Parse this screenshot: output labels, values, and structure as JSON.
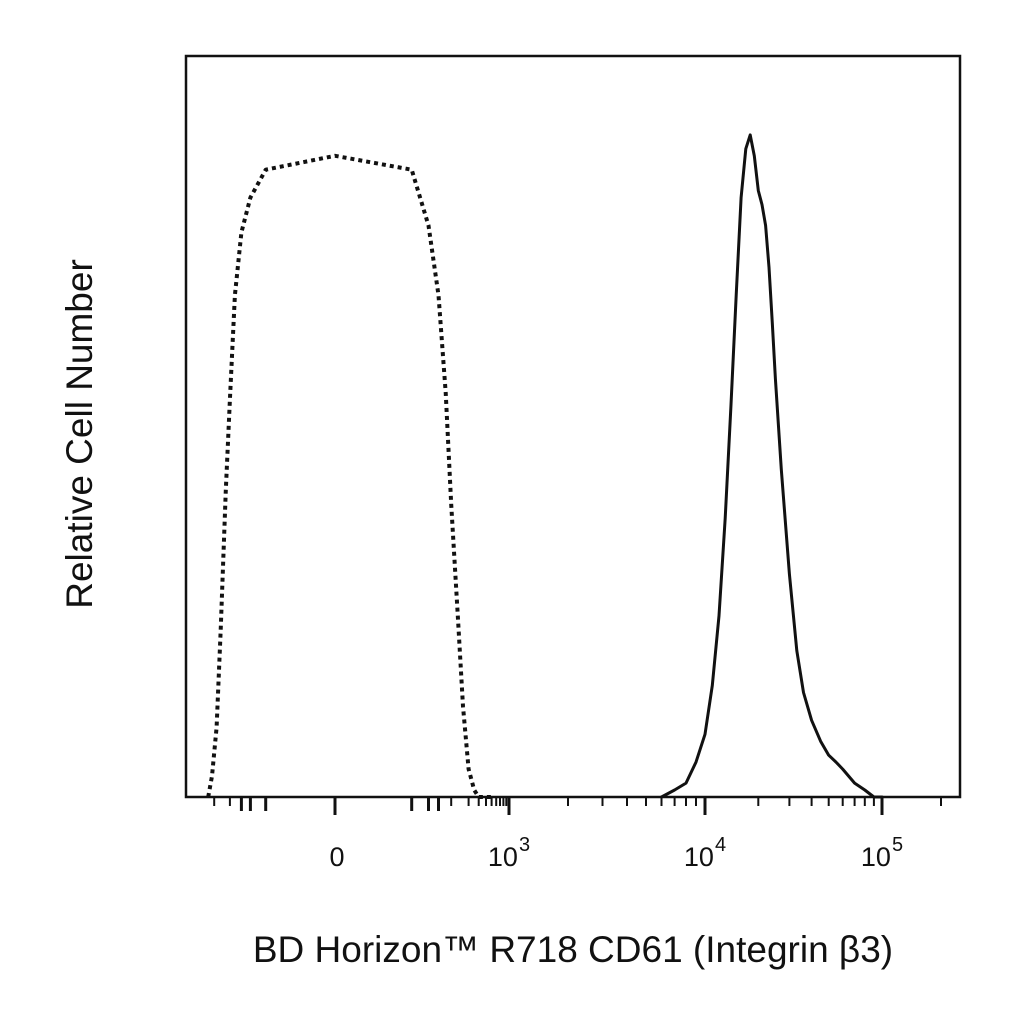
{
  "chart_data": {
    "type": "area",
    "title": "",
    "xlabel": "BD Horizon™ R718 CD61 (Integrin β3)",
    "ylabel": "Relative Cell Number",
    "x_scale": "biexponential",
    "xlim": [
      -300,
      250000
    ],
    "ylim": [
      0,
      100
    ],
    "grid": false,
    "legend": "none",
    "x_ticks": [
      {
        "value": 0,
        "base": "0",
        "exponent": ""
      },
      {
        "value": 1000,
        "base": "10",
        "exponent": "3"
      },
      {
        "value": 10000,
        "base": "10",
        "exponent": "4"
      },
      {
        "value": 100000,
        "base": "10",
        "exponent": "5"
      }
    ],
    "series": [
      {
        "line_style": "dotted",
        "color": "#111111",
        "x": [
          -260,
          -220,
          -180,
          -150,
          -120,
          -100,
          -80,
          -60,
          -40,
          -20,
          0,
          20,
          40,
          60,
          80,
          100,
          130,
          160,
          200,
          250,
          300,
          400,
          500
        ],
        "y": [
          0,
          3,
          10,
          24,
          44,
          57,
          72,
          81,
          86,
          90,
          92,
          90,
          82,
          72,
          58,
          42,
          26,
          13,
          4,
          1,
          0,
          0,
          0
        ]
      },
      {
        "line_style": "solid",
        "color": "#111111",
        "x": [
          6000,
          7000,
          8000,
          9000,
          10000,
          11000,
          12000,
          13000,
          14000,
          15000,
          16000,
          17000,
          18000,
          19000,
          20000,
          21000,
          22000,
          23000,
          24000,
          25000,
          27000,
          30000,
          33000,
          36000,
          40000,
          45000,
          50000,
          55000,
          60000,
          70000,
          80000,
          90000,
          100000
        ],
        "y": [
          0,
          1,
          2,
          5,
          9,
          16,
          26,
          40,
          56,
          72,
          86,
          93,
          95,
          92,
          87,
          85,
          82,
          76,
          68,
          60,
          47,
          32,
          21,
          15,
          11,
          8,
          6,
          5,
          4,
          2,
          1,
          0,
          0
        ]
      }
    ]
  }
}
